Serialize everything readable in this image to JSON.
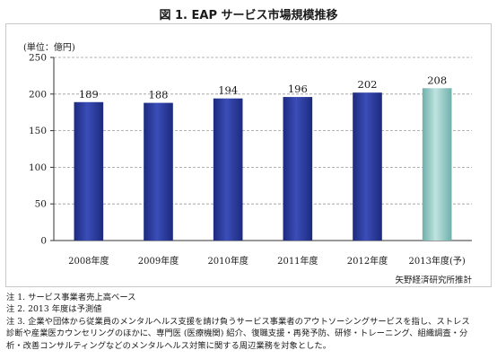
{
  "title": "図 1. EAP サービス市場規模推移",
  "unit": "(単位：億円)",
  "source": "矢野経済研究所推計",
  "notes": [
    "注 1. サービス事業者売上高ベース",
    "注 2. 2013 年度は予測値",
    "注 3. 企業や団体から従業員のメンタルヘルス支援を請け負うサービス事業者のアウトソーシングサービスを指し、ストレス",
    "診断や産業医カウンセリングのほかに、専門医 (医療機関) 紹介、復職支援・再発予防、研修・トレーニング、組織調査・分",
    "析・改善コンサルティングなどのメンタルヘルス対策に関する周辺業務を対象とした。"
  ],
  "chart_data": {
    "type": "bar",
    "categories": [
      "2008年度",
      "2009年度",
      "2010年度",
      "2011年度",
      "2012年度",
      "2013年度(予)"
    ],
    "values": [
      189,
      188,
      194,
      196,
      202,
      208
    ],
    "data_labels": [
      "189",
      "188",
      "194",
      "196",
      "202",
      "208"
    ],
    "ylim": [
      0,
      250
    ],
    "yticks": [
      0,
      50,
      100,
      150,
      200,
      250
    ],
    "ytick_labels": [
      "0",
      "50",
      "100",
      "150",
      "200",
      "250"
    ],
    "grid": true,
    "forecast_index": 5,
    "colors": {
      "bar": "#2b3a9a",
      "bar_forecast": "#8fc5c0",
      "grid": "#9a9a9a"
    }
  }
}
